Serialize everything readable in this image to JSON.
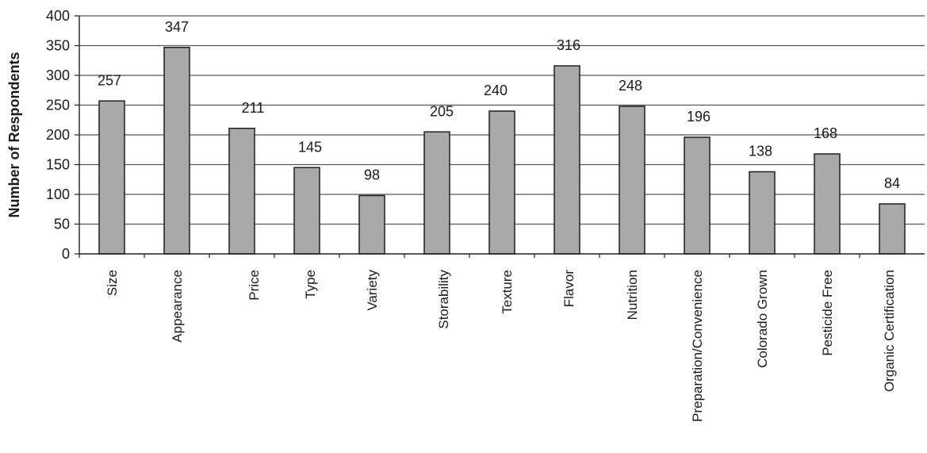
{
  "chart_data": {
    "type": "bar",
    "title": "",
    "xlabel": "",
    "ylabel": "Number of Respondents",
    "ylim": [
      0,
      400
    ],
    "yticks": [
      0,
      50,
      100,
      150,
      200,
      250,
      300,
      350,
      400
    ],
    "grid": true,
    "legend": "none",
    "categories": [
      "Size",
      "Appearance",
      "Price",
      "Type",
      "Variety",
      "Storability",
      "Texture",
      "Flavor",
      "Nutrition",
      "Preparation/Convenience",
      "Colorado Grown",
      "Pesticide Free",
      "Organic Certification"
    ],
    "values": [
      257,
      347,
      211,
      145,
      98,
      205,
      240,
      316,
      248,
      196,
      138,
      168,
      84
    ],
    "data_labels": [
      "257",
      "347",
      "211",
      "145",
      "98",
      "205",
      "240",
      "316",
      "248",
      "196",
      "138",
      "168",
      "84"
    ],
    "colors": {
      "bar_fill": "#a9a9a9",
      "bar_stroke": "#1e1e1e",
      "grid": "#555555",
      "axis": "#222222"
    }
  }
}
